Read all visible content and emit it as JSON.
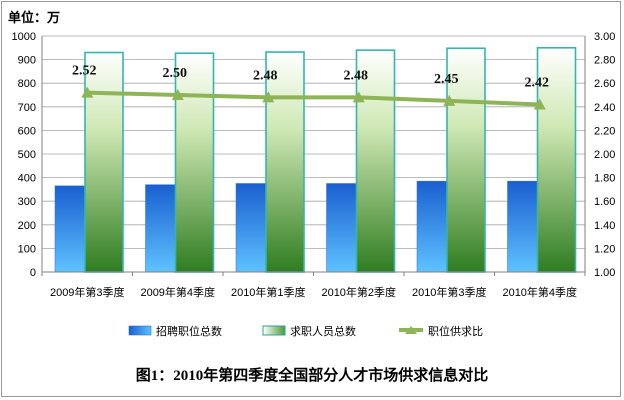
{
  "chart_data": {
    "type": "bar",
    "unit_label": "单位：万",
    "title": "图1：2010年第四季度全国部分人才市场供求信息对比",
    "categories": [
      "2009年第3季度",
      "2009年第4季度",
      "2010年第1季度",
      "2010年第2季度",
      "2010年第3季度",
      "2010年第4季度"
    ],
    "series": [
      {
        "name": "招聘职位总数",
        "type": "bar",
        "axis": "left",
        "color": "#1f6fd8",
        "values": [
          365,
          370,
          375,
          375,
          385,
          385
        ]
      },
      {
        "name": "求职人员总数",
        "type": "bar",
        "axis": "left",
        "color": "#3d8f2a",
        "values": [
          930,
          927,
          932,
          940,
          948,
          950
        ]
      },
      {
        "name": "职位供求比",
        "type": "line",
        "axis": "right",
        "color": "#8db456",
        "values": [
          2.52,
          2.5,
          2.48,
          2.48,
          2.45,
          2.42
        ],
        "labels": [
          "2.52",
          "2.50",
          "2.48",
          "2.48",
          "2.45",
          "2.42"
        ]
      }
    ],
    "y_left": {
      "min": 0,
      "max": 1000,
      "ticks": [
        "0",
        "100",
        "200",
        "300",
        "400",
        "500",
        "600",
        "700",
        "800",
        "900",
        "1000"
      ]
    },
    "y_right": {
      "min": 1.0,
      "max": 3.0,
      "ticks": [
        "1.00",
        "1.20",
        "1.40",
        "1.60",
        "1.80",
        "2.00",
        "2.20",
        "2.40",
        "2.60",
        "2.80",
        "3.00"
      ]
    },
    "grid": true,
    "legend_position": "bottom"
  }
}
